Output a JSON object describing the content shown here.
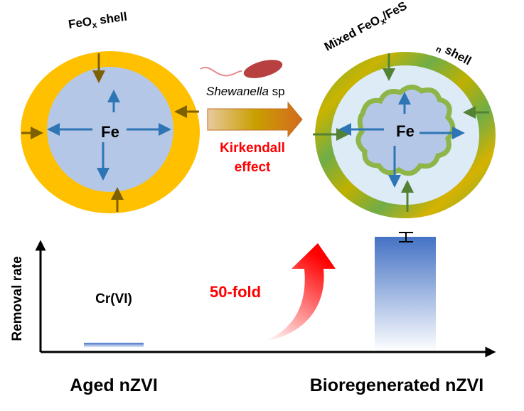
{
  "left_particle": {
    "shell_label": "FeO",
    "shell_sub": "x",
    "shell_suffix": " shell",
    "core_label": "Fe"
  },
  "right_particle": {
    "shell_label_parts": [
      "Mixed FeO",
      "x",
      "/FeS",
      "n",
      " shell"
    ],
    "core_label": "Fe"
  },
  "process": {
    "organism": "Shewanella",
    "organism_suffix": " sp",
    "effect_line1": "Kirkendall",
    "effect_line2": "effect"
  },
  "chart": {
    "ylabel": "Removal rate",
    "annotation": "Cr(VI)",
    "fold_label": "50-fold",
    "categories": [
      "Aged nZVI",
      "Bioregenerated nZVI"
    ],
    "values": [
      1,
      50
    ]
  },
  "colors": {
    "shell_old": "#FFC000",
    "core": "#B4C7E7",
    "arrow_blue": "#2E75B6",
    "shell_new_green": "#70AD47",
    "highlight_red": "#FF0000",
    "bar_blue": "#4472C4"
  }
}
